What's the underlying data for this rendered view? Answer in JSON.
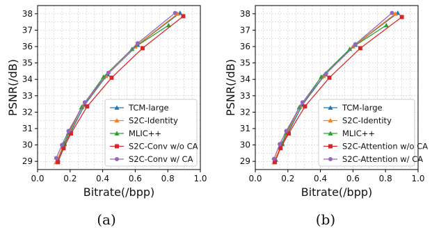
{
  "chart_data": [
    {
      "type": "line",
      "caption": "(a)",
      "xlabel": "Bitrate(/bpp)",
      "ylabel": "PSNR(/dB)",
      "xlim": [
        0.0,
        1.0
      ],
      "ylim": [
        28.5,
        38.5
      ],
      "xticks": [
        "0.0",
        "0.2",
        "0.4",
        "0.6",
        "0.8",
        "1.0"
      ],
      "yticks": [
        "29",
        "30",
        "31",
        "32",
        "33",
        "34",
        "35",
        "36",
        "37",
        "38"
      ],
      "grid": true,
      "legend_position": "lower-right",
      "series": [
        {
          "name": "TCM-large",
          "color": "#1f77b4",
          "marker": "triangle",
          "x": [
            0.125,
            0.165,
            0.29,
            0.43,
            0.615,
            0.875
          ],
          "y": [
            29.1,
            30.05,
            32.45,
            34.3,
            36.1,
            38.05
          ]
        },
        {
          "name": "S2C-Identity",
          "color": "#ff7f0e",
          "marker": "triangle",
          "x": [
            0.115,
            0.155,
            0.275,
            0.42,
            0.6,
            0.86
          ],
          "y": [
            28.95,
            29.9,
            32.35,
            34.2,
            36.0,
            38.0
          ]
        },
        {
          "name": "MLIC++",
          "color": "#2ca02c",
          "marker": "triangle",
          "x": [
            0.165,
            0.19,
            0.27,
            0.405,
            0.58,
            0.805
          ],
          "y": [
            30.1,
            30.75,
            32.3,
            34.15,
            35.85,
            37.3
          ]
        },
        {
          "name": "S2C-Conv w/o CA",
          "color": "#d62728",
          "marker": "square",
          "x": [
            0.125,
            0.16,
            0.205,
            0.305,
            0.455,
            0.645,
            0.895
          ],
          "y": [
            28.95,
            29.8,
            30.7,
            32.35,
            34.1,
            35.9,
            37.85
          ]
        },
        {
          "name": "S2C-Conv w/ CA",
          "color": "#9467bd",
          "marker": "circle",
          "x": [
            0.115,
            0.15,
            0.19,
            0.29,
            0.435,
            0.615,
            0.845
          ],
          "y": [
            29.2,
            30.0,
            30.85,
            32.6,
            34.4,
            36.2,
            38.05
          ]
        }
      ]
    },
    {
      "type": "line",
      "caption": "(b)",
      "xlabel": "Bitrate(/bpp)",
      "ylabel": "PSNR(/dB)",
      "xlim": [
        0.0,
        1.0
      ],
      "ylim": [
        28.5,
        38.5
      ],
      "xticks": [
        "0.0",
        "0.2",
        "0.4",
        "0.6",
        "0.8",
        "1.0"
      ],
      "yticks": [
        "29",
        "30",
        "31",
        "32",
        "33",
        "34",
        "35",
        "36",
        "37",
        "38"
      ],
      "grid": true,
      "legend_position": "lower-right",
      "series": [
        {
          "name": "TCM-large",
          "color": "#1f77b4",
          "marker": "triangle",
          "x": [
            0.125,
            0.165,
            0.29,
            0.43,
            0.615,
            0.875
          ],
          "y": [
            29.1,
            30.05,
            32.45,
            34.3,
            36.1,
            38.05
          ]
        },
        {
          "name": "S2C-Identity",
          "color": "#ff7f0e",
          "marker": "triangle",
          "x": [
            0.115,
            0.155,
            0.275,
            0.42,
            0.6,
            0.86
          ],
          "y": [
            28.95,
            29.9,
            32.35,
            34.2,
            36.0,
            38.0
          ]
        },
        {
          "name": "MLIC++",
          "color": "#2ca02c",
          "marker": "triangle",
          "x": [
            0.165,
            0.19,
            0.27,
            0.405,
            0.58,
            0.805
          ],
          "y": [
            30.1,
            30.75,
            32.3,
            34.15,
            35.85,
            37.3
          ]
        },
        {
          "name": "S2C-Attention w/o CA",
          "color": "#d62728",
          "marker": "square",
          "x": [
            0.12,
            0.155,
            0.205,
            0.305,
            0.455,
            0.645,
            0.9
          ],
          "y": [
            28.95,
            29.8,
            30.7,
            32.35,
            34.1,
            35.9,
            37.8
          ]
        },
        {
          "name": "S2C-Attention w/ CA",
          "color": "#9467bd",
          "marker": "circle",
          "x": [
            0.115,
            0.15,
            0.19,
            0.29,
            0.435,
            0.615,
            0.84
          ],
          "y": [
            29.15,
            30.05,
            30.85,
            32.6,
            34.35,
            36.15,
            38.05
          ]
        }
      ]
    }
  ]
}
